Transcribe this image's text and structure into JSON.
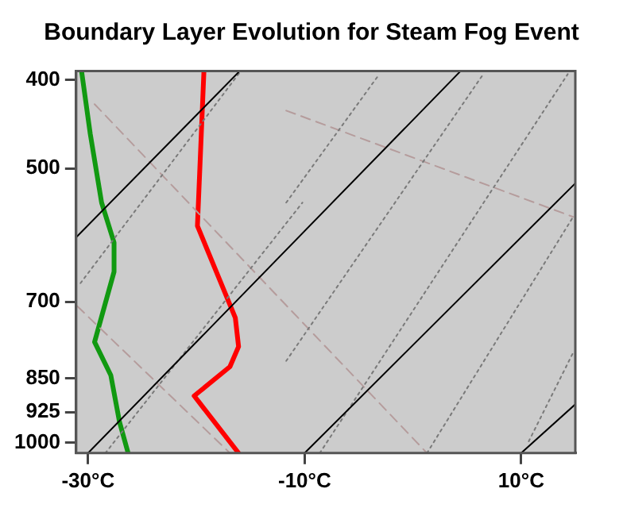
{
  "chart_data": {
    "type": "line",
    "title": "Boundary Layer Evolution for Steam Fog Event",
    "xlim": [
      -31.1,
      15
    ],
    "xticks": [
      {
        "value": -30,
        "label": "-30°C"
      },
      {
        "value": -10,
        "label": "-10°C"
      },
      {
        "value": 10,
        "label": "10°C"
      }
    ],
    "ylim": [
      1026,
      391
    ],
    "yticks": [
      400,
      500,
      700,
      850,
      925,
      1000
    ],
    "log": "y",
    "legend": false,
    "marker": "none",
    "series": [
      {
        "color": "#000000",
        "line_style": "solid",
        "x": [
          -31.1,
          -16.0
        ],
        "values": [
          595,
          391
        ]
      },
      {
        "color": "#000000",
        "line_style": "solid",
        "x": [
          -30,
          4.4
        ],
        "values": [
          1026,
          391
        ]
      },
      {
        "color": "#000000",
        "line_style": "solid",
        "x": [
          -10,
          15
        ],
        "values": [
          1026,
          519
        ]
      },
      {
        "color": "#000000",
        "line_style": "solid",
        "x": [
          10,
          15
        ],
        "values": [
          1026,
          907
        ]
      },
      {
        "color": "#7a7a7a",
        "line_style": "dotted",
        "x": [
          -11.7,
          -3.1
        ],
        "values": [
          545,
          394
        ]
      },
      {
        "color": "#7a7a7a",
        "line_style": "dotted",
        "x": [
          -11.7,
          6.5
        ],
        "values": [
          813,
          394
        ]
      },
      {
        "color": "#7a7a7a",
        "line_style": "dotted",
        "x": [
          -8.6,
          14.3
        ],
        "values": [
          1026,
          394
        ]
      },
      {
        "color": "#7a7a7a",
        "line_style": "dotted",
        "x": [
          1.3,
          14.8
        ],
        "values": [
          1026,
          565
        ]
      },
      {
        "color": "#7a7a7a",
        "line_style": "dotted",
        "x": [
          10.7,
          14.8
        ],
        "values": [
          996,
          796
        ]
      },
      {
        "color": "#7a7a7a",
        "line_style": "dotted",
        "x": [
          -30.7,
          -15.9
        ],
        "values": [
          668,
          391
        ]
      },
      {
        "color": "#7a7a7a",
        "line_style": "dotted",
        "x": [
          -28.4,
          -10.2
        ],
        "values": [
          1026,
          545
        ]
      },
      {
        "color": "#b59c9c",
        "line_style": "dashed",
        "x": [
          -29.4,
          1.3
        ],
        "values": [
          425,
          1026
        ]
      },
      {
        "color": "#b59c9c",
        "line_style": "dashed",
        "x": [
          -11.7,
          14.8
        ],
        "values": [
          432,
          565
        ]
      },
      {
        "color": "#b59c9c",
        "line_style": "dashed",
        "x": [
          -31,
          -16.9
        ],
        "values": [
          708,
          1026
        ]
      },
      {
        "color": "#ff0000",
        "line_style": "solid",
        "x": [
          -19.3,
          -19.9,
          -16.4,
          -16.1,
          -16.9,
          -20.2,
          -16.1
        ],
        "values": [
          391,
          578,
          729,
          784,
          825,
          888,
          1026
        ]
      },
      {
        "color": "#119911",
        "line_style": "solid",
        "x": [
          -30.6,
          -29.8,
          -28.75,
          -27.6,
          -27.6,
          -29.4,
          -27.9,
          -27.1,
          -26.3
        ],
        "values": [
          391,
          458,
          545,
          603,
          649,
          775,
          843,
          948,
          1026
        ]
      }
    ]
  }
}
